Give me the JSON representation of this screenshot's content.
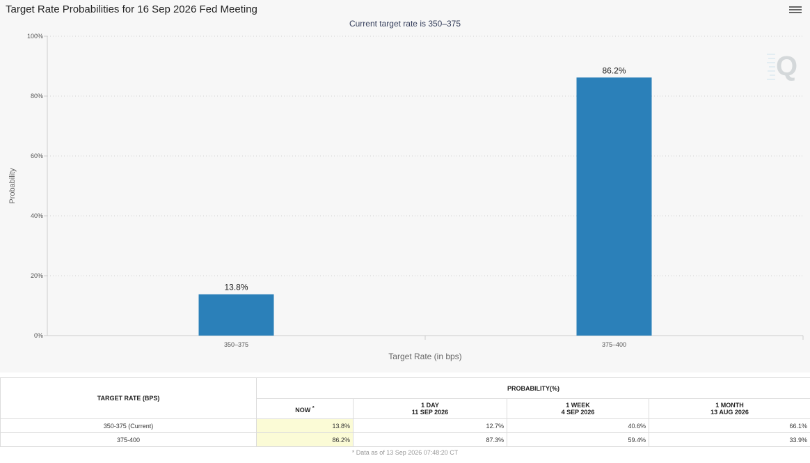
{
  "chart_data": {
    "type": "bar",
    "title": "Target Rate Probabilities for 16 Sep 2026 Fed Meeting",
    "subtitle": "Current target rate is 350–375",
    "xlabel": "Target Rate (in bps)",
    "ylabel": "Probability",
    "categories": [
      "350–375",
      "375–400"
    ],
    "values": [
      13.8,
      86.2
    ],
    "data_labels": [
      "13.8%",
      "86.2%"
    ],
    "yticks": [
      "0%",
      "20%",
      "40%",
      "60%",
      "80%",
      "100%"
    ],
    "ylim": [
      0,
      100
    ],
    "grid": true,
    "bar_color": "#2b80b9"
  },
  "table": {
    "col_rate_header": "TARGET RATE (BPS)",
    "group_header": "PROBABILITY(%)",
    "columns": [
      {
        "label": "NOW",
        "note": "*",
        "date": ""
      },
      {
        "label": "1 DAY",
        "date": "11 SEP 2026"
      },
      {
        "label": "1 WEEK",
        "date": "4 SEP 2026"
      },
      {
        "label": "1 MONTH",
        "date": "13 AUG 2026"
      }
    ],
    "rows": [
      {
        "rate": "350-375 (Current)",
        "values": [
          "13.8%",
          "12.7%",
          "40.6%",
          "66.1%"
        ]
      },
      {
        "rate": "375-400",
        "values": [
          "86.2%",
          "87.3%",
          "59.4%",
          "33.9%"
        ]
      }
    ],
    "footnote": "* Data as of 13 Sep 2026 07:48:20 CT"
  },
  "menu_icon": "hamburger-menu-icon",
  "watermark_icon": "q-logo-icon"
}
